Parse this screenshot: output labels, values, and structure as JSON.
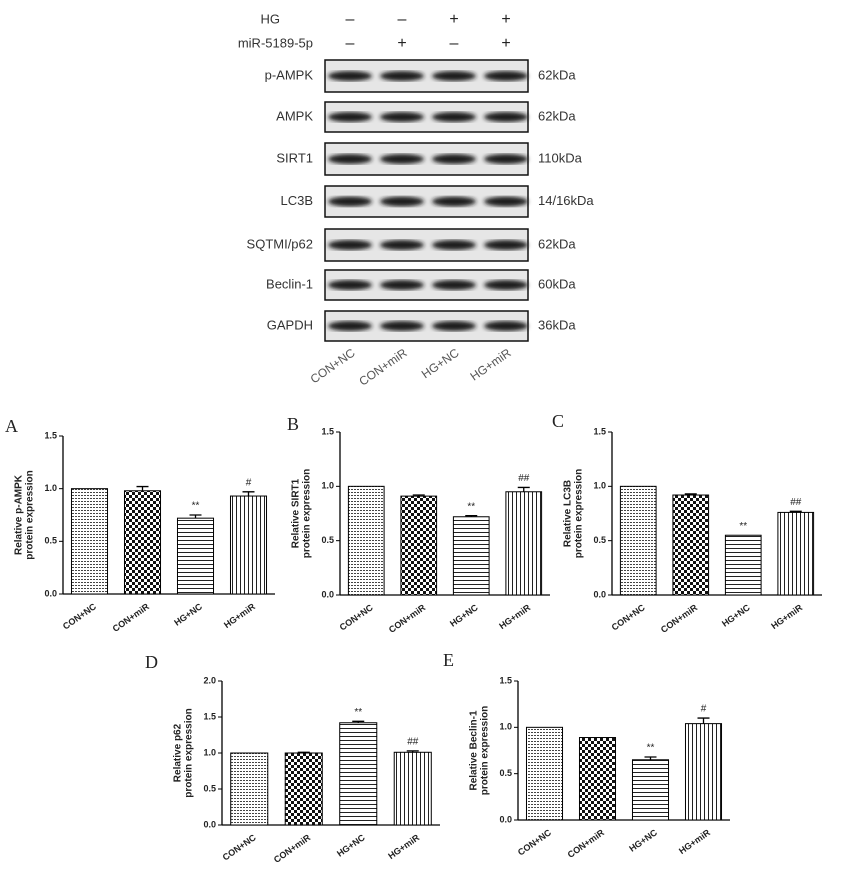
{
  "blot": {
    "conditions": [
      {
        "label": "HG",
        "signs": [
          "–",
          "–",
          "+",
          "+"
        ]
      },
      {
        "label": "miR-5189-5p",
        "signs": [
          "–",
          "+",
          "–",
          "+"
        ]
      }
    ],
    "rows": [
      {
        "label": "p-AMPK",
        "size": "62kDa"
      },
      {
        "label": "AMPK",
        "size": "62kDa"
      },
      {
        "label": "SIRT1",
        "size": "110kDa"
      },
      {
        "label": "LC3B",
        "size": "14/16kDa"
      },
      {
        "label": "SQTMI/p62",
        "size": "62kDa"
      },
      {
        "label": "Beclin-1",
        "size": "60kDa"
      },
      {
        "label": "GAPDH",
        "size": "36kDa"
      }
    ],
    "lanes": [
      "CON+NC",
      "CON+miR",
      "HG+NC",
      "HG+miR"
    ]
  },
  "chart_data": [
    {
      "type": "bar",
      "panel": "A",
      "ylabel": [
        "Relative p-AMPK",
        "protein expression"
      ],
      "categories": [
        "CON+NC",
        "CON+miR",
        "HG+NC",
        "HG+miR"
      ],
      "values": [
        1.0,
        0.98,
        0.72,
        0.93
      ],
      "errors": [
        null,
        0.04,
        0.03,
        0.04
      ],
      "annotations": [
        null,
        null,
        "**",
        "#"
      ],
      "fills": [
        "dots",
        "checker",
        "horizontal",
        "vertical"
      ],
      "color": "#000000",
      "ylim": [
        0,
        1.5
      ],
      "yticks": [
        {
          "value": 0,
          "label": "0.0"
        },
        0.5,
        {
          "value": 1,
          "label": "1.0"
        },
        1.5
      ]
    },
    {
      "type": "bar",
      "panel": "B",
      "ylabel": [
        "Relative SIRT1",
        "protein expression"
      ],
      "categories": [
        "CON+NC",
        "CON+miR",
        "HG+NC",
        "HG+miR"
      ],
      "values": [
        1.0,
        0.91,
        0.72,
        0.95
      ],
      "errors": [
        null,
        0.01,
        0.01,
        0.04
      ],
      "annotations": [
        null,
        null,
        "**",
        "##"
      ],
      "fills": [
        "dots",
        "checker",
        "horizontal",
        "vertical"
      ],
      "color": "#000000",
      "ylim": [
        0,
        1.5
      ],
      "yticks": [
        {
          "value": 0,
          "label": "0.0"
        },
        0.5,
        {
          "value": 1,
          "label": "1.0"
        },
        1.5
      ]
    },
    {
      "type": "bar",
      "panel": "C",
      "ylabel": [
        "Relative LC3B",
        "protein expression"
      ],
      "categories": [
        "CON+NC",
        "CON+miR",
        "HG+NC",
        "HG+miR"
      ],
      "values": [
        1.0,
        0.92,
        0.55,
        0.76
      ],
      "errors": [
        null,
        0.01,
        null,
        0.01
      ],
      "annotations": [
        null,
        null,
        "**",
        "##"
      ],
      "fills": [
        "dots",
        "checker",
        "horizontal",
        "vertical"
      ],
      "color": "#000000",
      "ylim": [
        0,
        1.5
      ],
      "yticks": [
        {
          "value": 0,
          "label": "0.0"
        },
        0.5,
        {
          "value": 1,
          "label": "1.0"
        },
        1.5
      ]
    },
    {
      "type": "bar",
      "panel": "D",
      "ylabel": [
        "Relative p62",
        "protein expression"
      ],
      "categories": [
        "CON+NC",
        "CON+miR",
        "HG+NC",
        "HG+miR"
      ],
      "values": [
        1.0,
        1.0,
        1.42,
        1.01
      ],
      "errors": [
        null,
        0.01,
        0.02,
        0.02
      ],
      "annotations": [
        null,
        null,
        "**",
        "##"
      ],
      "fills": [
        "dots",
        "checker",
        "horizontal",
        "vertical"
      ],
      "color": "#000000",
      "ylim": [
        0,
        2
      ],
      "yticks": [
        {
          "value": 0,
          "label": "0.0"
        },
        0.5,
        {
          "value": 1,
          "label": "1.0"
        },
        1.5,
        {
          "value": 2,
          "label": "2.0"
        }
      ]
    },
    {
      "type": "bar",
      "panel": "E",
      "ylabel": [
        "Relative Beclin-1",
        "protein expression"
      ],
      "categories": [
        "CON+NC",
        "CON+miR",
        "HG+NC",
        "HG+miR"
      ],
      "values": [
        1.0,
        0.89,
        0.65,
        1.04
      ],
      "errors": [
        null,
        null,
        0.03,
        0.06
      ],
      "annotations": [
        null,
        null,
        "**",
        "#"
      ],
      "fills": [
        "dots",
        "checker",
        "horizontal",
        "vertical"
      ],
      "color": "#000000",
      "ylim": [
        0,
        1.5
      ],
      "yticks": [
        {
          "value": 0,
          "label": "0.0"
        },
        0.5,
        {
          "value": 1,
          "label": "1.0"
        },
        1.5
      ]
    }
  ]
}
